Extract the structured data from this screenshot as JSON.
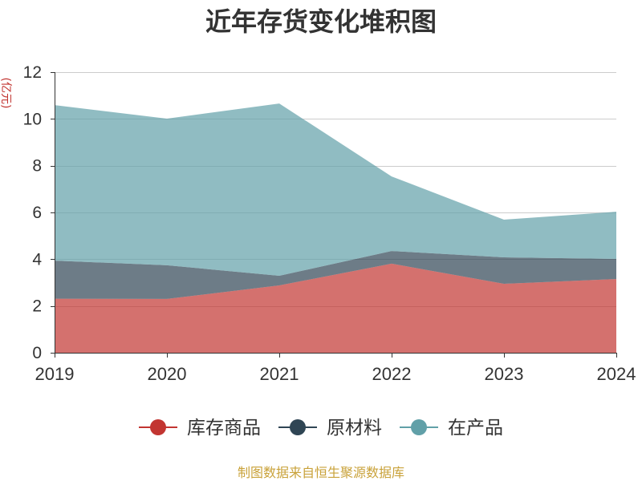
{
  "source_note": "制图数据来自恒生聚源数据库",
  "chart_data": {
    "type": "area",
    "stacked": true,
    "title": "近年存货变化堆积图",
    "ylabel": "(亿元)",
    "x": [
      "2019",
      "2020",
      "2021",
      "2022",
      "2023",
      "2024"
    ],
    "ylim": [
      0,
      12
    ],
    "yticks": [
      0,
      2,
      4,
      6,
      8,
      10,
      12
    ],
    "grid": true,
    "legend_position": "bottom",
    "series": [
      {
        "name": "库存商品",
        "color": "#c23531",
        "values": [
          2.31,
          2.3,
          2.88,
          3.81,
          2.95,
          3.15
        ]
      },
      {
        "name": "原材料",
        "color": "#2f4554",
        "values": [
          1.63,
          1.44,
          0.41,
          0.54,
          1.13,
          0.86
        ]
      },
      {
        "name": "在产品",
        "color": "#61a0a8",
        "values": [
          6.65,
          6.27,
          7.37,
          3.19,
          1.61,
          2.02
        ]
      }
    ]
  }
}
